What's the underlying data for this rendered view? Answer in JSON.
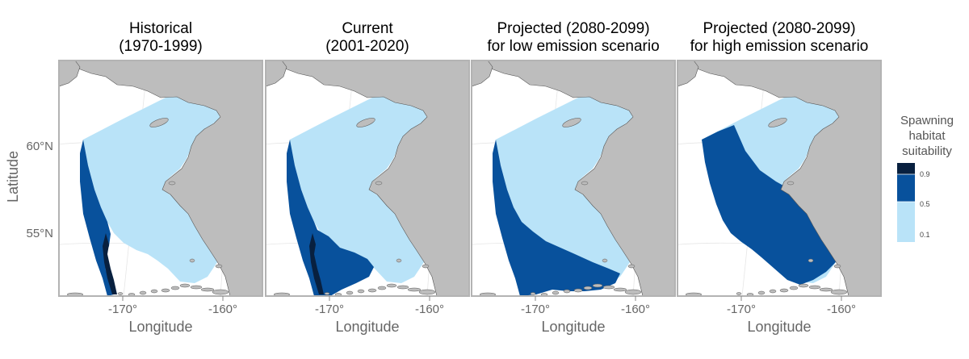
{
  "panels": [
    {
      "title_line1": "Historical",
      "title_line2": "(1970-1999)",
      "level": 1
    },
    {
      "title_line1": "Current",
      "title_line2": "(2001-2020)",
      "level": 2
    },
    {
      "title_line1": "Projected (2080-2099)",
      "title_line2": "for low emission scenario",
      "level": 3
    },
    {
      "title_line1": "Projected (2080-2099)",
      "title_line2": "for high emission scenario",
      "level": 4
    }
  ],
  "axes": {
    "y_label": "Latitude",
    "x_label": "Longitude",
    "y_ticks": [
      "60°N",
      "55°N"
    ],
    "x_ticks": [
      "-170°",
      "-160°"
    ]
  },
  "legend": {
    "title_lines": [
      "Spawning",
      "habitat",
      "suitability"
    ],
    "ticks": [
      "0.9",
      "0.5",
      "0.1"
    ],
    "colors": [
      "#08203f",
      "#08519c",
      "#b9e3f8"
    ]
  },
  "colors": {
    "land": "#bdbdbd",
    "low": "#b9e3f8",
    "mid": "#08519c",
    "high": "#08203f",
    "frame": "#b3b3b3"
  }
}
